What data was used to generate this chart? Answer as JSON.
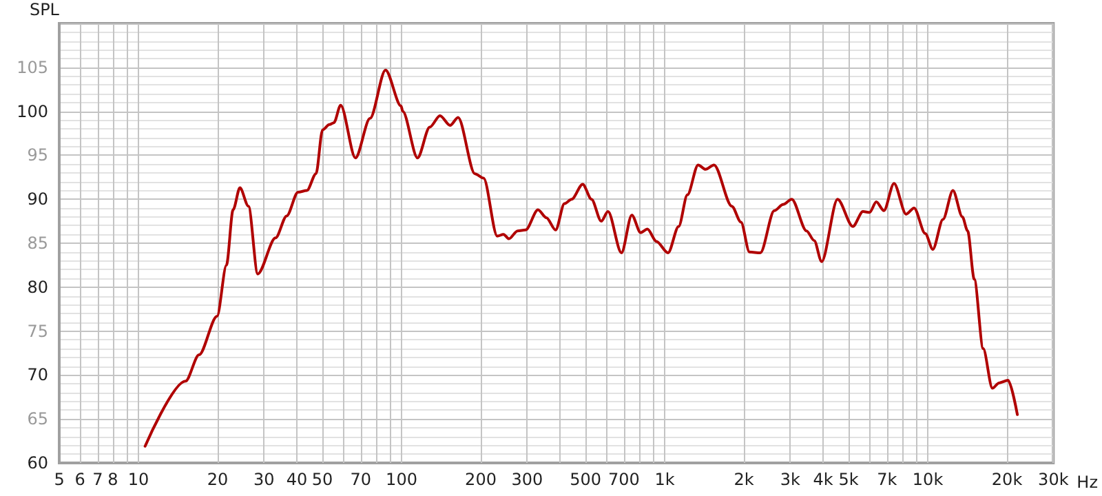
{
  "chart_data": {
    "type": "line",
    "ylabel": "SPL",
    "x": [
      10.6,
      15.1,
      17,
      19.9,
      21.6,
      22.9,
      24.3,
      26.2,
      28.4,
      33.2,
      36.6,
      40.4,
      43.7,
      47.3,
      50.1,
      53.2,
      55.3,
      58.7,
      66.8,
      75.9,
      86.9,
      99.6,
      101,
      115,
      128,
      140,
      153,
      164,
      190,
      205,
      231,
      244,
      256,
      276,
      296,
      330,
      355,
      385,
      416,
      443,
      488,
      527,
      574,
      609,
      685,
      750,
      810,
      860,
      930,
      1030,
      1130,
      1220,
      1340,
      1430,
      1540,
      1800,
      1950,
      2100,
      2310,
      2610,
      2820,
      3040,
      3460,
      3700,
      3950,
      4540,
      5190,
      5670,
      6010,
      6370,
      6810,
      7440,
      8270,
      8870,
      9780,
      10450,
      11420,
      12460,
      13530,
      14170,
      15020,
      16240,
      17600,
      18650,
      20200,
      21900
    ],
    "series": [
      {
        "color": "#b00000",
        "values": [
          61.9,
          69.3,
          72.3,
          76.7,
          82.5,
          88.8,
          91.3,
          89.2,
          81.5,
          85.6,
          88.1,
          90.8,
          91,
          92.9,
          97.9,
          98.5,
          98.7,
          100.7,
          94.7,
          99.2,
          104.7,
          100.6,
          100,
          94.7,
          98.2,
          99.5,
          98.4,
          99.3,
          92.9,
          92.4,
          85.8,
          86,
          85.5,
          86.4,
          86.5,
          88.8,
          87.9,
          86.5,
          89.5,
          90,
          91.7,
          90,
          87.5,
          88.6,
          83.9,
          88.2,
          86.2,
          86.6,
          85.2,
          83.9,
          86.9,
          90.5,
          93.9,
          93.4,
          93.9,
          89.2,
          87.4,
          84,
          83.9,
          88.7,
          89.4,
          90,
          86.4,
          85.3,
          82.9,
          90,
          86.9,
          88.6,
          88.5,
          89.7,
          88.7,
          91.8,
          88.3,
          89,
          86.1,
          84.3,
          87.7,
          91,
          88,
          86.4,
          80.9,
          73,
          68.5,
          69.1,
          69.4,
          65.5
        ]
      }
    ],
    "log": "x",
    "xlim": [
      5,
      30000
    ],
    "xticks": [
      5,
      6,
      7,
      8,
      {
        "value": 9,
        "label": null
      },
      10,
      20,
      30,
      40,
      50,
      {
        "value": 60,
        "label": null
      },
      70,
      {
        "value": 80,
        "label": null
      },
      {
        "value": 90,
        "label": null
      },
      100,
      200,
      300,
      {
        "value": 400,
        "label": null
      },
      500,
      {
        "value": 600,
        "label": null
      },
      700,
      {
        "value": 800,
        "label": null
      },
      {
        "value": 900,
        "label": null
      },
      {
        "value": 1000,
        "label": "1k"
      },
      {
        "value": 2000,
        "label": "2k"
      },
      {
        "value": 3000,
        "label": "3k"
      },
      {
        "value": 4000,
        "label": "4k"
      },
      {
        "value": 5000,
        "label": "5k"
      },
      {
        "value": 6000,
        "label": null
      },
      {
        "value": 7000,
        "label": "7k"
      },
      {
        "value": 8000,
        "label": null
      },
      {
        "value": 9000,
        "label": null
      },
      {
        "value": 10000,
        "label": "10k"
      },
      {
        "value": 20000,
        "label": "20k"
      },
      {
        "value": 30000,
        "label": "30k"
      }
    ],
    "xlabel": "Hz",
    "ylim": [
      60,
      110
    ],
    "yticks": [
      60,
      65,
      70,
      75,
      80,
      85,
      90,
      95,
      100,
      105
    ],
    "grid": true,
    "marker": "none",
    "line_style": "solid"
  }
}
